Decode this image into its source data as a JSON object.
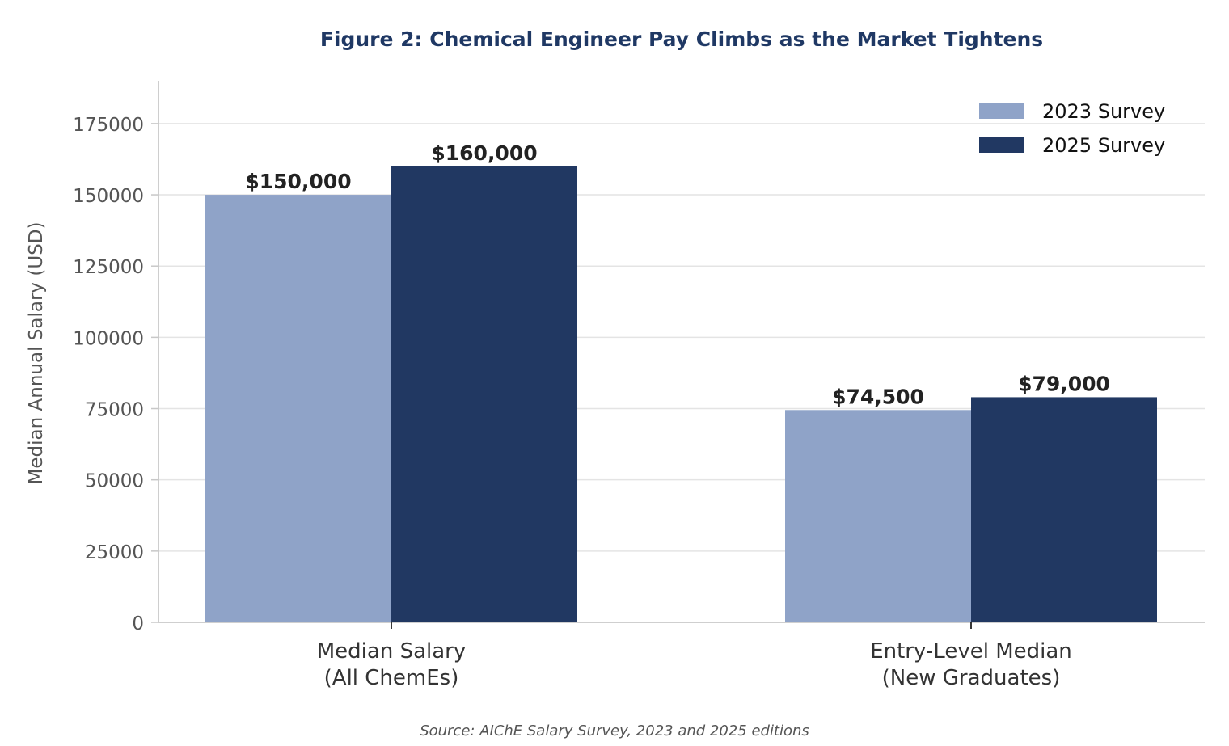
{
  "chart_data": {
    "type": "bar",
    "title": "Figure 2: Chemical Engineer Pay Climbs as the Market Tightens",
    "ylabel": "Median Annual Salary (USD)",
    "xlabel": "",
    "categories": [
      [
        "Median Salary",
        "(All ChemEs)"
      ],
      [
        "Entry-Level Median",
        "(New Graduates)"
      ]
    ],
    "series": [
      {
        "name": "2023 Survey",
        "color": "#8fa3c8",
        "values": [
          150000,
          74500
        ],
        "labels": [
          "$150,000",
          "$74,500"
        ]
      },
      {
        "name": "2025 Survey",
        "color": "#213862",
        "values": [
          160000,
          79000
        ],
        "labels": [
          "$160,000",
          "$79,000"
        ]
      }
    ],
    "ylim": [
      0,
      190000
    ],
    "yticks": [
      "0",
      "25000",
      "50000",
      "75000",
      "100000",
      "125000",
      "150000",
      "175000"
    ],
    "grid": "y-axis on",
    "legend_position": "top-right",
    "source": "Source: AIChE Salary Survey, 2023 and 2025 editions"
  },
  "colors": {
    "title": "#1f3864",
    "tick_text": "#555555",
    "category_text": "#333333",
    "data_label": "#222222",
    "grid": "#e4e4e4",
    "axis": "#c8c8c8",
    "source_text": "#555555"
  }
}
